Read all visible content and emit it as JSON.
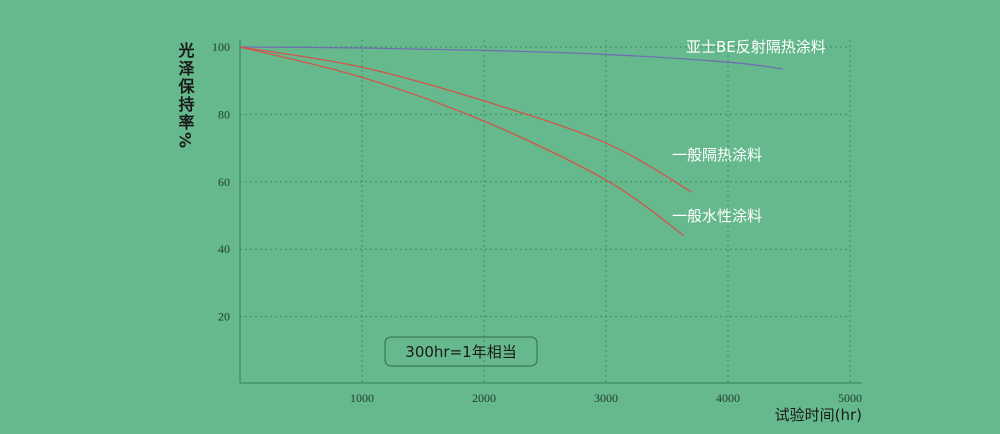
{
  "chart_data": {
    "type": "line",
    "y_label": "光泽保持率%",
    "x_label": "试验时间(hr)",
    "annotation": "300hr=1年相当",
    "xlim": [
      0,
      5000
    ],
    "xticks": [
      1000,
      2000,
      3000,
      4000,
      5000
    ],
    "ylim": [
      0,
      100
    ],
    "yticks": [
      20,
      40,
      60,
      80,
      100
    ],
    "grid": true,
    "series": [
      {
        "name": "亚士BE反射隔热涂料",
        "color": "#6f6fb4",
        "x": [
          0,
          1000,
          2000,
          3000,
          4000,
          4450
        ],
        "values": [
          100,
          99.7,
          99,
          97.8,
          95.5,
          93.5
        ]
      },
      {
        "name": "一般隔热涂料",
        "color": "#d0554e",
        "x": [
          0,
          1000,
          2000,
          3000,
          3700
        ],
        "values": [
          100,
          94,
          84,
          71.5,
          57
        ]
      },
      {
        "name": "一般水性涂料",
        "color": "#d0554e",
        "x": [
          0,
          1000,
          2000,
          3000,
          3640
        ],
        "values": [
          100,
          91,
          78,
          60.5,
          44
        ]
      }
    ]
  }
}
